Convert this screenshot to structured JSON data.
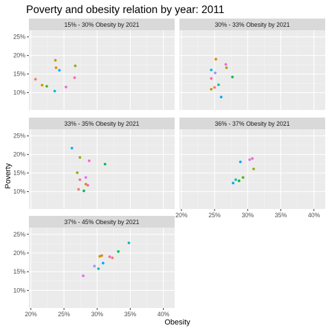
{
  "chart_data": {
    "type": "scatter",
    "title": "Poverty and obesity relation by year: 2011",
    "xlabel": "Obesity",
    "ylabel": "Poverty",
    "xlim": [
      0.197,
      0.417
    ],
    "ylim": [
      0.053,
      0.268
    ],
    "x_ticks": [
      0.2,
      0.25,
      0.3,
      0.35,
      0.4
    ],
    "x_tick_labels": [
      "20%",
      "25%",
      "30%",
      "35%",
      "40%"
    ],
    "y_ticks": [
      0.1,
      0.15,
      0.2,
      0.25
    ],
    "y_tick_labels": [
      "10%",
      "15%",
      "20%",
      "25%"
    ],
    "grid": true,
    "legend": "none",
    "panels": [
      {
        "label": "15% - 30% Obesity by 2021",
        "points": [
          {
            "x": 0.207,
            "y": 0.136,
            "color": "#F8766D"
          },
          {
            "x": 0.217,
            "y": 0.12,
            "color": "#C49A00"
          },
          {
            "x": 0.224,
            "y": 0.117,
            "color": "#53B400"
          },
          {
            "x": 0.237,
            "y": 0.187,
            "color": "#C49A00"
          },
          {
            "x": 0.238,
            "y": 0.167,
            "color": "#E58700"
          },
          {
            "x": 0.236,
            "y": 0.104,
            "color": "#00B6EB"
          },
          {
            "x": 0.243,
            "y": 0.16,
            "color": "#00A9FF"
          },
          {
            "x": 0.253,
            "y": 0.115,
            "color": "#FB61D7"
          },
          {
            "x": 0.266,
            "y": 0.14,
            "color": "#FF67A4"
          },
          {
            "x": 0.267,
            "y": 0.172,
            "color": "#99A800"
          }
        ]
      },
      {
        "label": "30% - 33% Obesity by 2021",
        "points": [
          {
            "x": 0.252,
            "y": 0.19,
            "color": "#E58700"
          },
          {
            "x": 0.245,
            "y": 0.161,
            "color": "#00B6EB"
          },
          {
            "x": 0.251,
            "y": 0.153,
            "color": "#A58AFF"
          },
          {
            "x": 0.245,
            "y": 0.138,
            "color": "#FF67A4"
          },
          {
            "x": 0.25,
            "y": 0.114,
            "color": "#F8766D"
          },
          {
            "x": 0.245,
            "y": 0.109,
            "color": "#C49A00"
          },
          {
            "x": 0.256,
            "y": 0.121,
            "color": "#00C0AF"
          },
          {
            "x": 0.26,
            "y": 0.088,
            "color": "#06A4FF"
          },
          {
            "x": 0.267,
            "y": 0.176,
            "color": "#FB61D7"
          },
          {
            "x": 0.268,
            "y": 0.167,
            "color": "#99A800"
          },
          {
            "x": 0.277,
            "y": 0.142,
            "color": "#00BC56"
          }
        ]
      },
      {
        "label": "33% - 35% Obesity by 2021",
        "points": [
          {
            "x": 0.262,
            "y": 0.217,
            "color": "#00B0F6"
          },
          {
            "x": 0.274,
            "y": 0.192,
            "color": "#99A800"
          },
          {
            "x": 0.27,
            "y": 0.151,
            "color": "#99A800"
          },
          {
            "x": 0.274,
            "y": 0.132,
            "color": "#FF67A4"
          },
          {
            "x": 0.272,
            "y": 0.106,
            "color": "#F8766D"
          },
          {
            "x": 0.28,
            "y": 0.102,
            "color": "#00BC56"
          },
          {
            "x": 0.288,
            "y": 0.183,
            "color": "#FB61D7"
          },
          {
            "x": 0.283,
            "y": 0.138,
            "color": "#E76BF3"
          },
          {
            "x": 0.283,
            "y": 0.12,
            "color": "#E58700"
          },
          {
            "x": 0.286,
            "y": 0.117,
            "color": "#FF62BC"
          },
          {
            "x": 0.312,
            "y": 0.174,
            "color": "#00BC56"
          }
        ]
      },
      {
        "label": "36% - 37% Obesity by 2021",
        "points": [
          {
            "x": 0.278,
            "y": 0.123,
            "color": "#06A4FF"
          },
          {
            "x": 0.282,
            "y": 0.132,
            "color": "#00C0AF"
          },
          {
            "x": 0.287,
            "y": 0.129,
            "color": "#00BA38"
          },
          {
            "x": 0.293,
            "y": 0.138,
            "color": "#53B400"
          },
          {
            "x": 0.289,
            "y": 0.18,
            "color": "#00A9FF"
          },
          {
            "x": 0.303,
            "y": 0.186,
            "color": "#E76BF3"
          },
          {
            "x": 0.307,
            "y": 0.189,
            "color": "#FF61C3"
          },
          {
            "x": 0.309,
            "y": 0.161,
            "color": "#99A800"
          }
        ]
      },
      {
        "label": "37% - 45% Obesity by 2021",
        "points": [
          {
            "x": 0.279,
            "y": 0.139,
            "color": "#E76BF3"
          },
          {
            "x": 0.296,
            "y": 0.165,
            "color": "#A58AFF"
          },
          {
            "x": 0.302,
            "y": 0.158,
            "color": "#00C0AF"
          },
          {
            "x": 0.304,
            "y": 0.191,
            "color": "#C49A00"
          },
          {
            "x": 0.307,
            "y": 0.193,
            "color": "#E58700"
          },
          {
            "x": 0.309,
            "y": 0.173,
            "color": "#00A9FF"
          },
          {
            "x": 0.319,
            "y": 0.19,
            "color": "#FF67A4"
          },
          {
            "x": 0.323,
            "y": 0.187,
            "color": "#F8766D"
          },
          {
            "x": 0.332,
            "y": 0.204,
            "color": "#00BC56"
          },
          {
            "x": 0.348,
            "y": 0.227,
            "color": "#00C0AF"
          }
        ]
      }
    ]
  }
}
